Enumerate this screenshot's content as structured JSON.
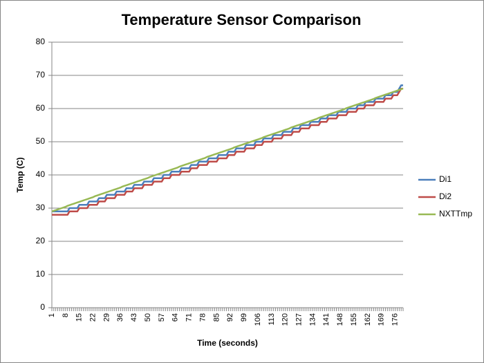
{
  "chart_data": {
    "type": "line",
    "title": "Temperature Sensor Comparison",
    "x_label": "Time (seconds)",
    "y_label": "Temp (C)",
    "categories": [
      1,
      null,
      null,
      null,
      null,
      null,
      null,
      8,
      null,
      null,
      null,
      null,
      null,
      null,
      15,
      null,
      null,
      null,
      null,
      null,
      null,
      22,
      null,
      null,
      null,
      null,
      null,
      null,
      29,
      null,
      null,
      null,
      null,
      null,
      null,
      36,
      null,
      null,
      null,
      null,
      null,
      null,
      43,
      null,
      null,
      null,
      null,
      null,
      null,
      50,
      null,
      null,
      null,
      null,
      null,
      null,
      57,
      null,
      null,
      null,
      null,
      null,
      null,
      64,
      null,
      null,
      null,
      null,
      null,
      null,
      71,
      null,
      null,
      null,
      null,
      null,
      null,
      78,
      null,
      null,
      null,
      null,
      null,
      null,
      85,
      null,
      null,
      null,
      null,
      null,
      null,
      92,
      null,
      null,
      null,
      null,
      null,
      null,
      99,
      null,
      null,
      null,
      null,
      null,
      null,
      106,
      null,
      null,
      null,
      null,
      null,
      null,
      113,
      null,
      null,
      null,
      null,
      null,
      null,
      120,
      null,
      null,
      null,
      null,
      null,
      null,
      127,
      null,
      null,
      null,
      null,
      null,
      null,
      134,
      null,
      null,
      null,
      null,
      null,
      null,
      141,
      null,
      null,
      null,
      null,
      null,
      null,
      148,
      null,
      null,
      null,
      null,
      null,
      null,
      155,
      null,
      null,
      null,
      null,
      null,
      null,
      162,
      null,
      null,
      null,
      null,
      null,
      null,
      169,
      null,
      null,
      null,
      null,
      null,
      null,
      176,
      null,
      null,
      null,
      null
    ],
    "series": [
      {
        "name": "Di1",
        "color": "#4a7ebb",
        "values": [
          29,
          29,
          29,
          29,
          29,
          29,
          29,
          29,
          29,
          30,
          30,
          30,
          30,
          30,
          31,
          31,
          31,
          31,
          31,
          32,
          32,
          32,
          32,
          32,
          33,
          33,
          33,
          33,
          34,
          34,
          34,
          34,
          34,
          35,
          35,
          35,
          35,
          35,
          36,
          36,
          36,
          36,
          37,
          37,
          37,
          37,
          37,
          38,
          38,
          38,
          38,
          38,
          39,
          39,
          39,
          39,
          39,
          40,
          40,
          40,
          40,
          41,
          41,
          41,
          41,
          41,
          42,
          42,
          42,
          42,
          42,
          43,
          43,
          43,
          43,
          44,
          44,
          44,
          44,
          44,
          45,
          45,
          45,
          45,
          45,
          46,
          46,
          46,
          46,
          46,
          47,
          47,
          47,
          47,
          48,
          48,
          48,
          48,
          48,
          49,
          49,
          49,
          49,
          49,
          50,
          50,
          50,
          50,
          51,
          51,
          51,
          51,
          51,
          52,
          52,
          52,
          52,
          52,
          53,
          53,
          53,
          53,
          53,
          54,
          54,
          54,
          54,
          55,
          55,
          55,
          55,
          55,
          56,
          56,
          56,
          56,
          56,
          57,
          57,
          57,
          57,
          58,
          58,
          58,
          58,
          58,
          59,
          59,
          59,
          59,
          59,
          60,
          60,
          60,
          60,
          60,
          61,
          61,
          61,
          61,
          62,
          62,
          62,
          62,
          62,
          63,
          63,
          63,
          63,
          63,
          64,
          64,
          64,
          64,
          65,
          65,
          65,
          66,
          67,
          67
        ]
      },
      {
        "name": "Di2",
        "color": "#be4b48",
        "values": [
          28,
          28,
          28,
          28,
          28,
          28,
          28,
          28,
          28,
          29,
          29,
          29,
          29,
          29,
          30,
          30,
          30,
          30,
          30,
          31,
          31,
          31,
          31,
          31,
          32,
          32,
          32,
          32,
          33,
          33,
          33,
          33,
          33,
          34,
          34,
          34,
          34,
          34,
          35,
          35,
          35,
          35,
          36,
          36,
          36,
          36,
          36,
          37,
          37,
          37,
          37,
          37,
          38,
          38,
          38,
          38,
          38,
          39,
          39,
          39,
          39,
          40,
          40,
          40,
          40,
          40,
          41,
          41,
          41,
          41,
          41,
          42,
          42,
          42,
          42,
          43,
          43,
          43,
          43,
          43,
          44,
          44,
          44,
          44,
          44,
          45,
          45,
          45,
          45,
          45,
          46,
          46,
          46,
          46,
          47,
          47,
          47,
          47,
          47,
          48,
          48,
          48,
          48,
          48,
          49,
          49,
          49,
          49,
          50,
          50,
          50,
          50,
          50,
          51,
          51,
          51,
          51,
          51,
          52,
          52,
          52,
          52,
          52,
          53,
          53,
          53,
          53,
          54,
          54,
          54,
          54,
          54,
          55,
          55,
          55,
          55,
          55,
          56,
          56,
          56,
          56,
          57,
          57,
          57,
          57,
          57,
          58,
          58,
          58,
          58,
          58,
          59,
          59,
          59,
          59,
          59,
          60,
          60,
          60,
          60,
          61,
          61,
          61,
          61,
          61,
          62,
          62,
          62,
          62,
          62,
          63,
          63,
          63,
          63,
          64,
          64,
          64,
          65,
          66,
          66
        ]
      },
      {
        "name": "NXTTmp",
        "color": "#98b954",
        "values": [
          29.0,
          29.2,
          29.4,
          29.6,
          29.8,
          30.0,
          30.2,
          30.4,
          30.7,
          30.9,
          31.1,
          31.3,
          31.5,
          31.7,
          31.9,
          32.1,
          32.3,
          32.5,
          32.7,
          32.9,
          33.1,
          33.3,
          33.6,
          33.8,
          34.0,
          34.2,
          34.4,
          34.6,
          34.8,
          35.0,
          35.2,
          35.4,
          35.6,
          35.8,
          36.0,
          36.2,
          36.5,
          36.7,
          36.9,
          37.1,
          37.3,
          37.5,
          37.7,
          37.9,
          38.1,
          38.3,
          38.5,
          38.7,
          38.9,
          39.1,
          39.4,
          39.6,
          39.8,
          40.0,
          40.2,
          40.4,
          40.6,
          40.8,
          41.0,
          41.2,
          41.4,
          41.6,
          41.8,
          42.0,
          42.2,
          42.5,
          42.7,
          42.9,
          43.1,
          43.3,
          43.5,
          43.7,
          43.9,
          44.1,
          44.3,
          44.5,
          44.7,
          44.9,
          45.1,
          45.4,
          45.6,
          45.8,
          46.0,
          46.2,
          46.4,
          46.6,
          46.8,
          47.0,
          47.2,
          47.4,
          47.6,
          47.8,
          48.0,
          48.3,
          48.5,
          48.7,
          48.9,
          49.1,
          49.3,
          49.5,
          49.7,
          49.9,
          50.1,
          50.3,
          50.5,
          50.7,
          50.9,
          51.1,
          51.4,
          51.6,
          51.8,
          52.0,
          52.2,
          52.4,
          52.6,
          52.8,
          53.0,
          53.2,
          53.4,
          53.6,
          53.8,
          54.0,
          54.3,
          54.5,
          54.7,
          54.9,
          55.1,
          55.3,
          55.5,
          55.7,
          55.9,
          56.1,
          56.3,
          56.5,
          56.7,
          56.9,
          57.2,
          57.4,
          57.6,
          57.8,
          58.0,
          58.2,
          58.4,
          58.6,
          58.8,
          59.0,
          59.2,
          59.4,
          59.6,
          59.8,
          60.1,
          60.3,
          60.5,
          60.7,
          60.9,
          61.1,
          61.3,
          61.5,
          61.7,
          61.9,
          62.1,
          62.3,
          62.5,
          62.7,
          62.9,
          63.2,
          63.4,
          63.6,
          63.8,
          64.0,
          64.2,
          64.4,
          64.6,
          64.8,
          65.0,
          65.2,
          65.4,
          65.6,
          65.8,
          66.1
        ]
      }
    ],
    "ylim": [
      0,
      80
    ],
    "yticks": [
      0,
      10,
      20,
      30,
      40,
      50,
      60,
      70,
      80
    ],
    "grid": true,
    "legend": "right"
  }
}
